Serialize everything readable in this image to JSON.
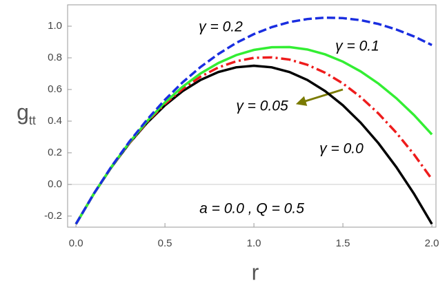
{
  "chart_data": {
    "type": "line",
    "x_label": "r",
    "y_label": "g",
    "y_label_subscript": "tt",
    "x": [
      0,
      0.1,
      0.2,
      0.3,
      0.4,
      0.5,
      0.6,
      0.7,
      0.8,
      0.9,
      1.0,
      1.1,
      1.2,
      1.3,
      1.4,
      1.5,
      1.6,
      1.7,
      1.8,
      1.9,
      2.0
    ],
    "series": [
      {
        "name": "γ = 0.0",
        "color": "#000000",
        "dash": "solid",
        "values": [
          -0.25,
          -0.06,
          0.11,
          0.26,
          0.39,
          0.5,
          0.59,
          0.66,
          0.71,
          0.74,
          0.75,
          0.74,
          0.71,
          0.66,
          0.59,
          0.5,
          0.39,
          0.26,
          0.11,
          -0.06,
          -0.25
        ]
      },
      {
        "name": "γ = 0.05",
        "color": "#ee1c1c",
        "dash": "dashdot",
        "values": [
          -0.25,
          -0.06,
          0.111,
          0.262,
          0.395,
          0.509,
          0.604,
          0.681,
          0.739,
          0.778,
          0.8,
          0.803,
          0.789,
          0.756,
          0.706,
          0.638,
          0.552,
          0.448,
          0.327,
          0.189,
          0.033
        ]
      },
      {
        "name": "γ = 0.1",
        "color": "#33ee33",
        "dash": "solid",
        "values": [
          -0.25,
          -0.06,
          0.112,
          0.265,
          0.4,
          0.518,
          0.618,
          0.701,
          0.767,
          0.817,
          0.85,
          0.867,
          0.868,
          0.853,
          0.822,
          0.776,
          0.714,
          0.637,
          0.545,
          0.438,
          0.316
        ]
      },
      {
        "name": "γ = 0.2",
        "color": "#1a2ee0",
        "dash": "dashed",
        "values": [
          -0.25,
          -0.059,
          0.114,
          0.27,
          0.41,
          0.535,
          0.646,
          0.742,
          0.824,
          0.894,
          0.95,
          0.994,
          1.026,
          1.045,
          1.054,
          1.051,
          1.038,
          1.014,
          0.979,
          0.935,
          0.881
        ]
      }
    ],
    "annotation": "a = 0.0 , Q = 0.5",
    "xlim": [
      -0.047,
      2.023
    ],
    "ylim": [
      -0.27,
      1.135
    ],
    "xticks": [
      {
        "value": 0,
        "label": "0.0"
      },
      0.5,
      {
        "value": 1,
        "label": "1.0"
      },
      1.5,
      {
        "value": 2,
        "label": "2.0"
      }
    ],
    "yticks": [
      -0.2,
      {
        "value": 0,
        "label": "0.0"
      },
      0.2,
      0.4,
      0.6,
      0.8,
      {
        "value": 1,
        "label": "1.0"
      }
    ],
    "zero_line": true
  }
}
